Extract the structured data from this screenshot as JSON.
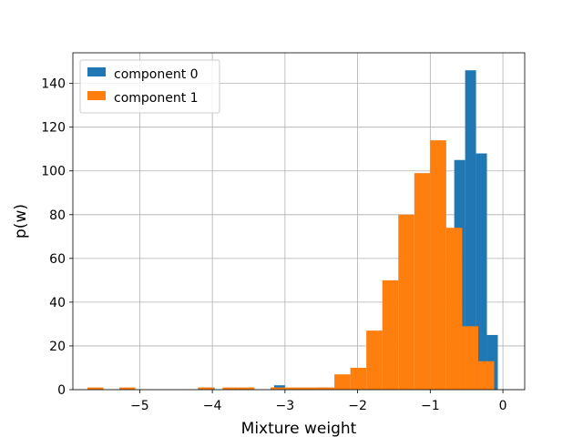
{
  "chart_data": {
    "type": "histogram",
    "title": "",
    "xlabel": "Mixture weight",
    "ylabel": "p(w)",
    "xlim": [
      -5.92,
      0.3
    ],
    "ylim": [
      0,
      154
    ],
    "xticks": [
      -5,
      -4,
      -3,
      -2,
      -1,
      0
    ],
    "xtick_labels": [
      "−5",
      "−4",
      "−3",
      "−2",
      "−1",
      "0"
    ],
    "yticks": [
      0,
      20,
      40,
      60,
      80,
      100,
      120,
      140
    ],
    "ytick_labels": [
      "0",
      "20",
      "40",
      "60",
      "80",
      "100",
      "120",
      "140"
    ],
    "grid": true,
    "legend_position": "upper-left",
    "series": [
      {
        "name": "component 0",
        "color": "#1f77b4",
        "bin_width": 0.15,
        "bins": [
          {
            "x0": -4.12,
            "count": 1
          },
          {
            "x0": -3.15,
            "count": 2
          },
          {
            "x0": -2.55,
            "count": 1
          },
          {
            "x0": -0.67,
            "count": 105
          },
          {
            "x0": -0.52,
            "count": 146
          },
          {
            "x0": -0.37,
            "count": 108
          },
          {
            "x0": -0.22,
            "count": 25
          }
        ]
      },
      {
        "name": "component 1",
        "color": "#ff7f0e",
        "bin_width": 0.22,
        "bins": [
          {
            "x0": -5.72,
            "count": 1
          },
          {
            "x0": -5.28,
            "count": 1
          },
          {
            "x0": -4.2,
            "count": 1
          },
          {
            "x0": -3.86,
            "count": 1
          },
          {
            "x0": -3.64,
            "count": 1
          },
          {
            "x0": -3.2,
            "count": 1
          },
          {
            "x0": -2.98,
            "count": 1
          },
          {
            "x0": -2.76,
            "count": 1
          },
          {
            "x0": -2.54,
            "count": 1
          },
          {
            "x0": -2.32,
            "count": 7
          },
          {
            "x0": -2.1,
            "count": 10
          },
          {
            "x0": -1.88,
            "count": 27
          },
          {
            "x0": -1.66,
            "count": 50
          },
          {
            "x0": -1.44,
            "count": 80
          },
          {
            "x0": -1.22,
            "count": 99
          },
          {
            "x0": -1.0,
            "count": 114
          },
          {
            "x0": -0.78,
            "count": 74
          },
          {
            "x0": -0.56,
            "count": 29
          },
          {
            "x0": -0.34,
            "count": 13
          }
        ]
      }
    ]
  }
}
